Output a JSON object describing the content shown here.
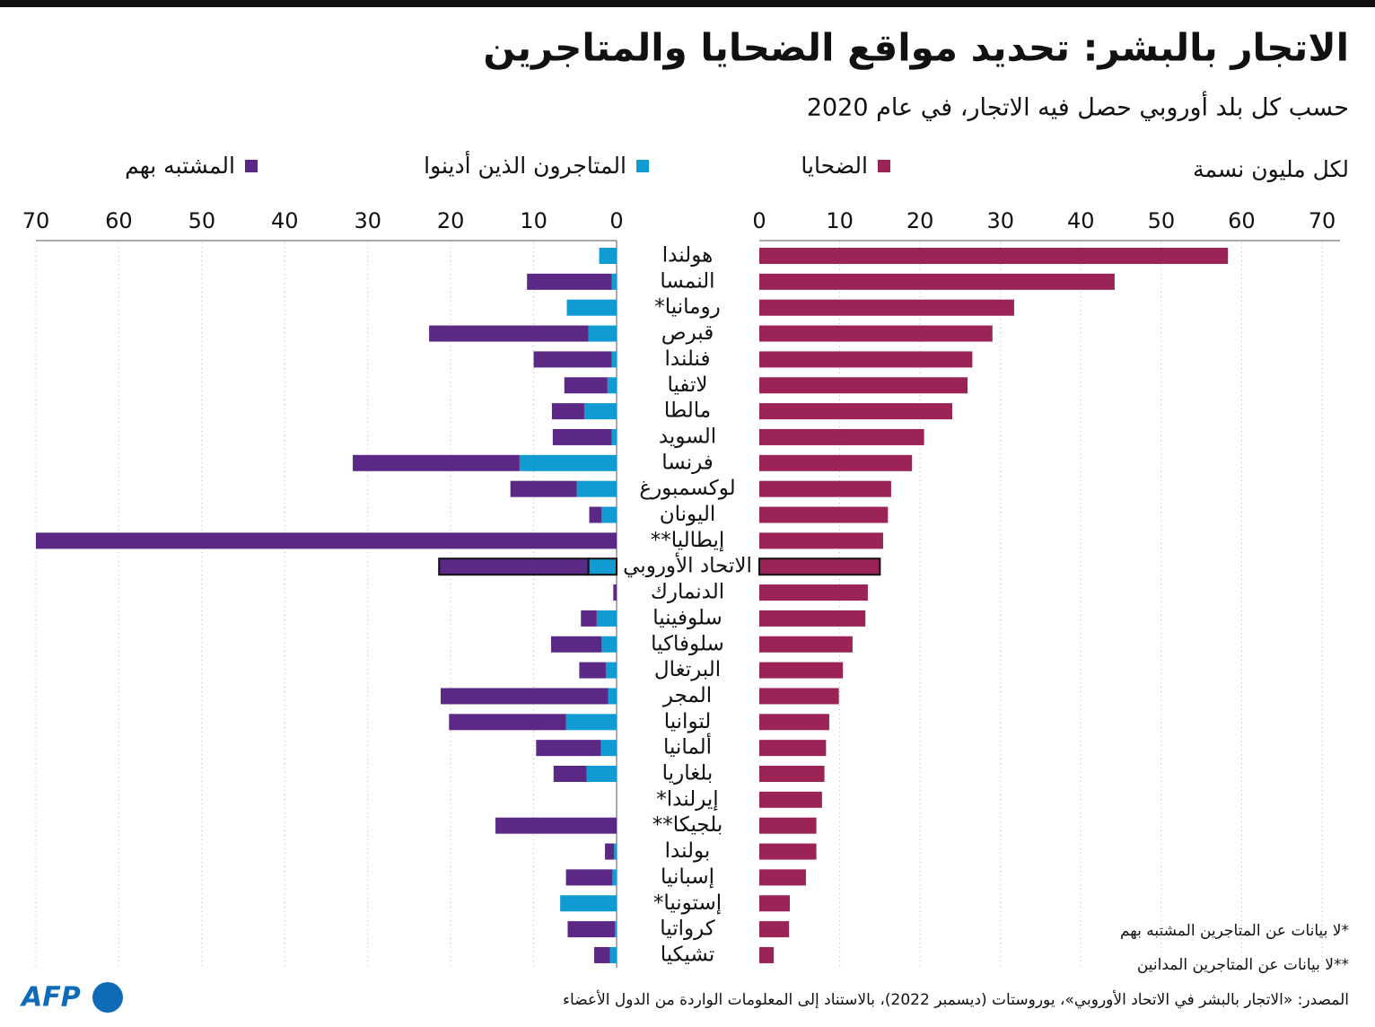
{
  "title": "الاتجار بالبشر: تحديد مواقع الضحايا والمتاجرين",
  "subtitle": "حسب كل بلد أوروبي حصل فيه الاتجار، في عام 2020",
  "unit_label": "لكل مليون نسمة",
  "notes": [
    "*لا بيانات عن المتاجرين المشتبه بهم",
    "**لا بيانات عن المتاجرين المدانين"
  ],
  "source": "المصدر: «الاتجار بالبشر في الاتحاد الأوروبي»، يوروستات (ديسمبر 2022)، بالاستناد إلى المعلومات الواردة من الدول الأعضاء",
  "logo": "AFP",
  "chart_data": {
    "type": "mirrored_bar",
    "categories": [
      "هولندا",
      "النمسا",
      "رومانيا*",
      "قبرص",
      "فنلندا",
      "لاتفيا",
      "مالطا",
      "السويد",
      "فرنسا",
      "لوكسمبورغ",
      "اليونان",
      "إيطاليا**",
      "الاتحاد الأوروبي",
      "الدنمارك",
      "سلوفينيا",
      "سلوفاكيا",
      "البرتغال",
      "المجر",
      "لتوانيا",
      "ألمانيا",
      "بلغاريا",
      "إيرلندا*",
      "بلجيكا**",
      "بولندا",
      "إسبانيا",
      "إستونيا*",
      "كرواتيا",
      "تشيكيا"
    ],
    "highlight": "الاتحاد الأوروبي",
    "xlim": [
      0,
      70
    ],
    "xticks": [
      0,
      10,
      20,
      30,
      40,
      50,
      60,
      70
    ],
    "grid": true,
    "series": [
      {
        "name": "الضحايا",
        "color": "#9b2358",
        "panel": "right",
        "values": [
          58.3,
          44.2,
          31.7,
          29.0,
          26.5,
          25.9,
          24.0,
          20.5,
          19.0,
          16.4,
          16.0,
          15.4,
          15.0,
          13.5,
          13.2,
          11.6,
          10.4,
          9.9,
          8.7,
          8.3,
          8.1,
          7.8,
          7.1,
          7.1,
          5.8,
          3.8,
          3.7,
          1.8
        ]
      },
      {
        "name": "المتاجرون الذين أدينوا",
        "color": "#109bd3",
        "panel": "left",
        "values": [
          2.1,
          0.6,
          6.0,
          3.4,
          0.6,
          1.1,
          3.9,
          0.6,
          11.7,
          4.8,
          1.8,
          null,
          3.4,
          0,
          2.4,
          1.8,
          1.3,
          1.0,
          6.1,
          1.9,
          3.6,
          0,
          null,
          0.3,
          0.5,
          6.8,
          0.2,
          0.8
        ]
      },
      {
        "name": "المشتبه بهم",
        "color": "#5b2985",
        "panel": "left",
        "values": [
          0,
          10.2,
          null,
          19.2,
          9.4,
          5.2,
          3.9,
          7.1,
          20.1,
          8.0,
          1.5,
          70,
          18.0,
          0.4,
          1.9,
          6.1,
          3.2,
          20.2,
          14.1,
          7.8,
          4.0,
          null,
          14.6,
          1.1,
          5.6,
          null,
          5.7,
          1.9
        ]
      }
    ]
  }
}
